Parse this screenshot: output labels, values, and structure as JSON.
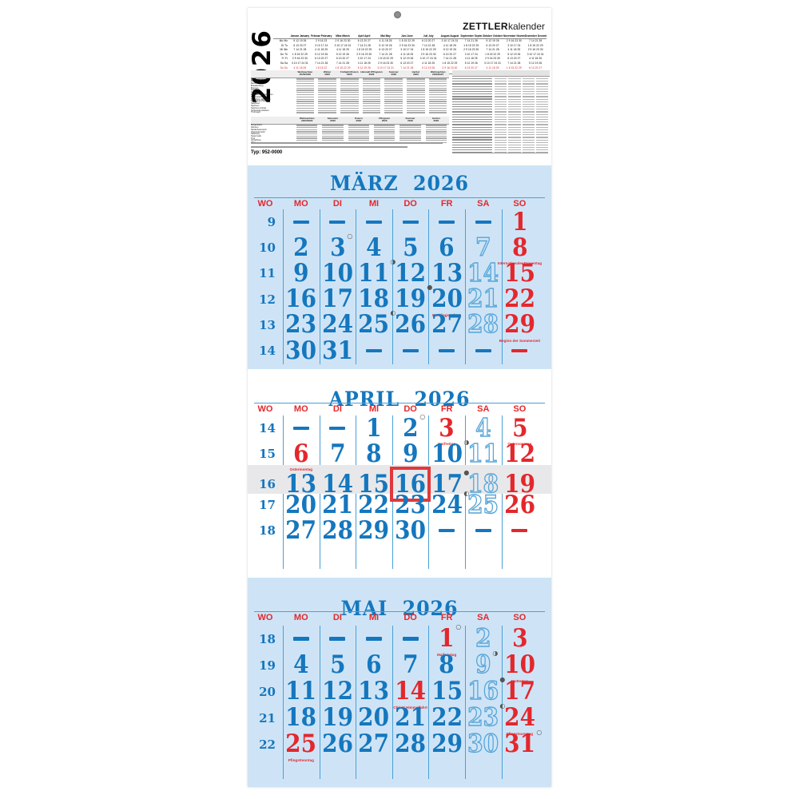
{
  "brand": {
    "bold": "ZETTLER",
    "light": "kalender"
  },
  "year": "2026",
  "type_label": "Typ: 952-0000",
  "weekday_header": [
    "WO",
    "MO",
    "DI",
    "MI",
    "DO",
    "FR",
    "SA",
    "SO"
  ],
  "year_overview": {
    "weekday_labels": [
      "Mo Mo",
      "Di Tu",
      "Mi We",
      "Do Th",
      "Fr Fr",
      "Sa Sa",
      "So Su"
    ],
    "months": [
      {
        "name": "Januar January",
        "rows": [
          "5 12 19 26",
          "6 13 20 27",
          "7 14 21 28",
          "1 8 15 22 29",
          "2 9 16 23 30",
          "3 10 17 24 31",
          "4 11 18 25"
        ]
      },
      {
        "name": "Februar February",
        "rows": [
          "2 9 16 23",
          "3 10 17 24",
          "4 11 18 25",
          "5 12 19 26",
          "6 13 20 27",
          "7 14 21 28",
          "1 8 15 22"
        ]
      },
      {
        "name": "März March",
        "rows": [
          "2 9 16 23 30",
          "3 10 17 24 31",
          "4 11 18 25",
          "5 12 19 26",
          "6 13 20 27",
          "7 14 21 28",
          "1 8 15 22 29"
        ]
      },
      {
        "name": "April April",
        "rows": [
          "6 13 20 27",
          "7 14 21 28",
          "1 8 15 22 29",
          "2 9 16 23 30",
          "3 10 17 24",
          "4 11 18 25",
          "5 12 19 26"
        ]
      },
      {
        "name": "Mai May",
        "rows": [
          "4 11 18 25",
          "5 12 19 26",
          "6 13 20 27",
          "7 14 21 28",
          "1 8 15 22 29",
          "2 9 16 23 30",
          "3 10 17 24 31"
        ]
      },
      {
        "name": "Juni June",
        "rows": [
          "1 8 15 22 29",
          "2 9 16 23 30",
          "3 10 17 24",
          "4 11 18 25",
          "5 12 19 26",
          "6 13 20 27",
          "7 14 21 28"
        ]
      },
      {
        "name": "Juli July",
        "rows": [
          "6 13 20 27",
          "7 14 21 28",
          "1 8 15 22 29",
          "2 9 16 23 30",
          "3 10 17 24 31",
          "4 11 18 25",
          "5 12 19 26"
        ]
      },
      {
        "name": "August August",
        "rows": [
          "3 10 17 24 31",
          "4 11 18 25",
          "5 12 19 26",
          "6 13 20 27",
          "7 14 21 28",
          "1 8 15 22 29",
          "2 9 16 23 30"
        ]
      },
      {
        "name": "September September",
        "rows": [
          "7 14 21 28",
          "1 8 15 22 29",
          "2 9 16 23 30",
          "3 10 17 24",
          "4 11 18 25",
          "5 12 19 26",
          "6 13 20 27"
        ]
      },
      {
        "name": "Oktober October",
        "rows": [
          "5 12 19 26",
          "6 13 20 27",
          "7 14 21 28",
          "1 8 15 22 29",
          "2 9 16 23 30",
          "3 10 17 24 31",
          "4 11 18 25"
        ]
      },
      {
        "name": "November November",
        "rows": [
          "2 9 16 23 30",
          "3 10 17 24",
          "4 11 18 25",
          "5 12 19 26",
          "6 13 20 27",
          "7 14 21 28",
          "1 8 15 22 29"
        ]
      },
      {
        "name": "Dezember December",
        "rows": [
          "7 14 21 28",
          "1 8 15 22 29",
          "2 9 16 23 30",
          "3 10 17 24 31",
          "4 11 18 25",
          "5 12 19 26",
          "6 13 20 27"
        ]
      }
    ]
  },
  "ferien_de": {
    "columns": [
      "Weihnachten 2025/2026",
      "Winter 2026",
      "Frühjahr/Ostern 2026",
      "Himmelf./Pfingsten 2026",
      "Sommer 2026",
      "Herbst 2026",
      "Weihnachten 2026/2027"
    ],
    "rows": [
      "Baden-Württemberg",
      "Bayern",
      "Berlin",
      "Brandenburg",
      "Bremen",
      "Hamburg",
      "Hessen",
      "Mecklenburg-Vorpomm.",
      "Niedersachsen",
      "Nordrhein-Westfalen",
      "Rheinland-Pfalz",
      "Saarland",
      "Sachsen",
      "Sachsen-Anhalt",
      "Schleswig-Holstein",
      "Thüringen"
    ]
  },
  "ferien_at": {
    "columns": [
      "Weihnachten 2025/2026",
      "Semester 2026",
      "Ostern 2026",
      "Pfingsten 2026",
      "Sommer 2026",
      "Herbst 2026"
    ],
    "rows": [
      "Burgenland",
      "Kärnten",
      "Niederösterreich",
      "Oberösterreich",
      "Salzburg",
      "Steiermark",
      "Tirol",
      "Vorarlberg",
      "Wien"
    ]
  },
  "months": [
    {
      "name": "MÄRZ",
      "year": "2026",
      "weeks": [
        {
          "wn": "9",
          "days": [
            {
              "dash": "blue"
            },
            {
              "dash": "blue"
            },
            {
              "dash": "blue"
            },
            {
              "dash": "blue"
            },
            {
              "dash": "blue"
            },
            {
              "dash": "blue"
            },
            {
              "d": "1",
              "c": "red"
            }
          ]
        },
        {
          "wn": "10",
          "days": [
            {
              "d": "2",
              "c": "blue"
            },
            {
              "d": "3",
              "c": "blue",
              "moon": "○"
            },
            {
              "d": "4",
              "c": "blue"
            },
            {
              "d": "5",
              "c": "blue"
            },
            {
              "d": "6",
              "c": "blue"
            },
            {
              "d": "7",
              "c": "outline"
            },
            {
              "d": "8",
              "c": "red",
              "sub": "Internationaler Frauentag"
            }
          ]
        },
        {
          "wn": "11",
          "days": [
            {
              "d": "9",
              "c": "blue"
            },
            {
              "d": "10",
              "c": "blue"
            },
            {
              "d": "11",
              "c": "blue",
              "moon": "◑"
            },
            {
              "d": "12",
              "c": "blue"
            },
            {
              "d": "13",
              "c": "blue"
            },
            {
              "d": "14",
              "c": "outline"
            },
            {
              "d": "15",
              "c": "red"
            }
          ]
        },
        {
          "wn": "12",
          "days": [
            {
              "d": "16",
              "c": "blue"
            },
            {
              "d": "17",
              "c": "blue"
            },
            {
              "d": "18",
              "c": "blue"
            },
            {
              "d": "19",
              "c": "blue",
              "moon": "●"
            },
            {
              "d": "20",
              "c": "blue",
              "sub": "Frühlingsanfang"
            },
            {
              "d": "21",
              "c": "outline"
            },
            {
              "d": "22",
              "c": "red"
            }
          ]
        },
        {
          "wn": "13",
          "days": [
            {
              "d": "23",
              "c": "blue"
            },
            {
              "d": "24",
              "c": "blue"
            },
            {
              "d": "25",
              "c": "blue",
              "moon": "◐"
            },
            {
              "d": "26",
              "c": "blue"
            },
            {
              "d": "27",
              "c": "blue"
            },
            {
              "d": "28",
              "c": "outline"
            },
            {
              "d": "29",
              "c": "red",
              "sub": "Beginn der Sommerzeit"
            }
          ]
        },
        {
          "wn": "14",
          "days": [
            {
              "d": "30",
              "c": "blue"
            },
            {
              "d": "31",
              "c": "blue"
            },
            {
              "dash": "blue"
            },
            {
              "dash": "blue"
            },
            {
              "dash": "blue"
            },
            {
              "dash": "blue"
            },
            {
              "dash": "red"
            }
          ]
        }
      ]
    },
    {
      "name": "APRIL",
      "year": "2026",
      "weeks": [
        {
          "wn": "14",
          "days": [
            {
              "dash": "blue"
            },
            {
              "dash": "blue"
            },
            {
              "d": "1",
              "c": "blue"
            },
            {
              "d": "2",
              "c": "blue",
              "moon": "○"
            },
            {
              "d": "3",
              "c": "red",
              "sub": "Karfreitag"
            },
            {
              "d": "4",
              "c": "outline"
            },
            {
              "d": "5",
              "c": "red",
              "sub": "Ostersonntag"
            }
          ]
        },
        {
          "wn": "15",
          "days": [
            {
              "d": "6",
              "c": "red",
              "sub": "Ostermontag"
            },
            {
              "d": "7",
              "c": "blue"
            },
            {
              "d": "8",
              "c": "blue"
            },
            {
              "d": "9",
              "c": "blue"
            },
            {
              "d": "10",
              "c": "blue",
              "moon": "◑"
            },
            {
              "d": "11",
              "c": "outline"
            },
            {
              "d": "12",
              "c": "red"
            }
          ]
        },
        {
          "wn": "16",
          "highlight": true,
          "days": [
            {
              "d": "13",
              "c": "blue"
            },
            {
              "d": "14",
              "c": "blue"
            },
            {
              "d": "15",
              "c": "blue"
            },
            {
              "d": "16",
              "c": "blue",
              "box": true
            },
            {
              "d": "17",
              "c": "blue",
              "moon": "●"
            },
            {
              "d": "18",
              "c": "outline"
            },
            {
              "d": "19",
              "c": "red"
            }
          ]
        },
        {
          "wn": "17",
          "days": [
            {
              "d": "20",
              "c": "blue"
            },
            {
              "d": "21",
              "c": "blue"
            },
            {
              "d": "22",
              "c": "blue"
            },
            {
              "d": "23",
              "c": "blue"
            },
            {
              "d": "24",
              "c": "blue",
              "moon": "◐"
            },
            {
              "d": "25",
              "c": "outline"
            },
            {
              "d": "26",
              "c": "red"
            }
          ]
        },
        {
          "wn": "18",
          "days": [
            {
              "d": "27",
              "c": "blue"
            },
            {
              "d": "28",
              "c": "blue"
            },
            {
              "d": "29",
              "c": "blue"
            },
            {
              "d": "30",
              "c": "blue"
            },
            {
              "dash": "blue"
            },
            {
              "dash": "blue"
            },
            {
              "dash": "red"
            }
          ]
        }
      ]
    },
    {
      "name": "MAI",
      "year": "2026",
      "weeks": [
        {
          "wn": "18",
          "days": [
            {
              "dash": "blue"
            },
            {
              "dash": "blue"
            },
            {
              "dash": "blue"
            },
            {
              "dash": "blue"
            },
            {
              "d": "1",
              "c": "red",
              "sub": "Maifeiertag",
              "moon": "○"
            },
            {
              "d": "2",
              "c": "outline"
            },
            {
              "d": "3",
              "c": "red"
            }
          ]
        },
        {
          "wn": "19",
          "days": [
            {
              "d": "4",
              "c": "blue"
            },
            {
              "d": "5",
              "c": "blue"
            },
            {
              "d": "6",
              "c": "blue"
            },
            {
              "d": "7",
              "c": "blue"
            },
            {
              "d": "8",
              "c": "blue"
            },
            {
              "d": "9",
              "c": "outline",
              "moon": "◑"
            },
            {
              "d": "10",
              "c": "red",
              "sub": "Muttertag"
            }
          ]
        },
        {
          "wn": "20",
          "days": [
            {
              "d": "11",
              "c": "blue"
            },
            {
              "d": "12",
              "c": "blue"
            },
            {
              "d": "13",
              "c": "blue"
            },
            {
              "d": "14",
              "c": "red",
              "sub": "Christi Himmelfahrt"
            },
            {
              "d": "15",
              "c": "blue"
            },
            {
              "d": "16",
              "c": "outline",
              "moon": "●"
            },
            {
              "d": "17",
              "c": "red"
            }
          ]
        },
        {
          "wn": "21",
          "days": [
            {
              "d": "18",
              "c": "blue"
            },
            {
              "d": "19",
              "c": "blue"
            },
            {
              "d": "20",
              "c": "blue"
            },
            {
              "d": "21",
              "c": "blue"
            },
            {
              "d": "22",
              "c": "blue"
            },
            {
              "d": "23",
              "c": "outline",
              "moon": "◐"
            },
            {
              "d": "24",
              "c": "red",
              "sub": "Pfingstsonntag"
            }
          ]
        },
        {
          "wn": "22",
          "days": [
            {
              "d": "25",
              "c": "red",
              "sub": "Pfingstmontag"
            },
            {
              "d": "26",
              "c": "blue"
            },
            {
              "d": "27",
              "c": "blue"
            },
            {
              "d": "28",
              "c": "blue"
            },
            {
              "d": "29",
              "c": "blue"
            },
            {
              "d": "30",
              "c": "outline"
            },
            {
              "d": "31",
              "c": "red",
              "moon": "○"
            }
          ]
        }
      ]
    }
  ],
  "colors": {
    "blue": "#1577be",
    "red": "#e4272c",
    "panel_blue": "#cee4f6",
    "line": "#4aa0d5",
    "band": "#e8e8ea",
    "box_red": "#e0393c"
  }
}
